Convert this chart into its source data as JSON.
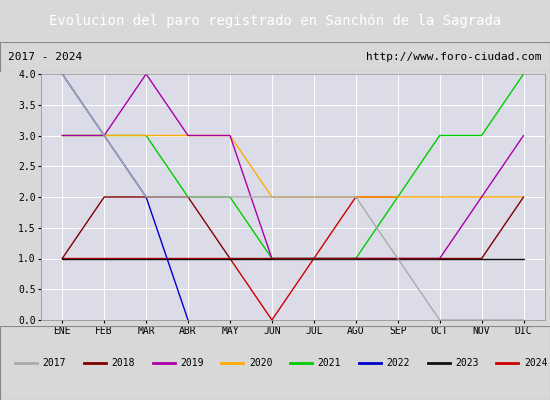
{
  "title": "Evolucion del paro registrado en Sanchón de la Sagrada",
  "subtitle_left": "2017 - 2024",
  "subtitle_right": "http://www.foro-ciudad.com",
  "ylim": [
    0.0,
    4.0
  ],
  "yticks": [
    0.0,
    0.5,
    1.0,
    1.5,
    2.0,
    2.5,
    3.0,
    3.5,
    4.0
  ],
  "months": [
    "ENE",
    "FEB",
    "MAR",
    "ABR",
    "MAY",
    "JUN",
    "JUL",
    "AGO",
    "SEP",
    "OCT",
    "NOV",
    "DIC"
  ],
  "series": {
    "2017": {
      "color": "#aaaaaa",
      "data": [
        4.0,
        3.0,
        2.0,
        2.0,
        2.0,
        2.0,
        2.0,
        2.0,
        1.0,
        0.0,
        0.0,
        0.0
      ]
    },
    "2018": {
      "color": "#800000",
      "data": [
        1.0,
        2.0,
        2.0,
        2.0,
        1.0,
        1.0,
        1.0,
        1.0,
        1.0,
        1.0,
        1.0,
        2.0
      ]
    },
    "2019": {
      "color": "#aa00aa",
      "data": [
        3.0,
        3.0,
        4.0,
        3.0,
        3.0,
        1.0,
        1.0,
        1.0,
        1.0,
        1.0,
        2.0,
        3.0
      ]
    },
    "2020": {
      "color": "#ffaa00",
      "data": [
        3.0,
        3.0,
        3.0,
        3.0,
        3.0,
        2.0,
        2.0,
        2.0,
        2.0,
        2.0,
        2.0,
        2.0
      ]
    },
    "2021": {
      "color": "#00cc00",
      "data": [
        3.0,
        3.0,
        3.0,
        2.0,
        2.0,
        1.0,
        1.0,
        1.0,
        2.0,
        3.0,
        3.0,
        4.0
      ]
    },
    "2022": {
      "color": "#0000cc",
      "data": [
        4.0,
        3.0,
        2.0,
        0.0,
        null,
        null,
        null,
        null,
        null,
        null,
        null,
        null
      ]
    },
    "2023": {
      "color": "#111111",
      "data": [
        1.0,
        1.0,
        1.0,
        1.0,
        1.0,
        1.0,
        1.0,
        1.0,
        1.0,
        1.0,
        1.0,
        1.0
      ]
    },
    "2024": {
      "color": "#cc0000",
      "data": [
        1.0,
        1.0,
        1.0,
        1.0,
        1.0,
        0.0,
        1.0,
        2.0,
        2.0,
        null,
        null,
        null
      ]
    }
  },
  "bg_outer": "#d8d8d8",
  "bg_title": "#4466aa",
  "bg_subtitle": "#d0d0d0",
  "bg_plot": "#dcdce8",
  "title_color": "#ffffff",
  "grid_color": "#ffffff",
  "legend_order": [
    "2017",
    "2018",
    "2019",
    "2020",
    "2021",
    "2022",
    "2023",
    "2024"
  ],
  "title_fontsize": 10,
  "subtitle_fontsize": 8,
  "tick_fontsize": 7,
  "legend_fontsize": 7
}
